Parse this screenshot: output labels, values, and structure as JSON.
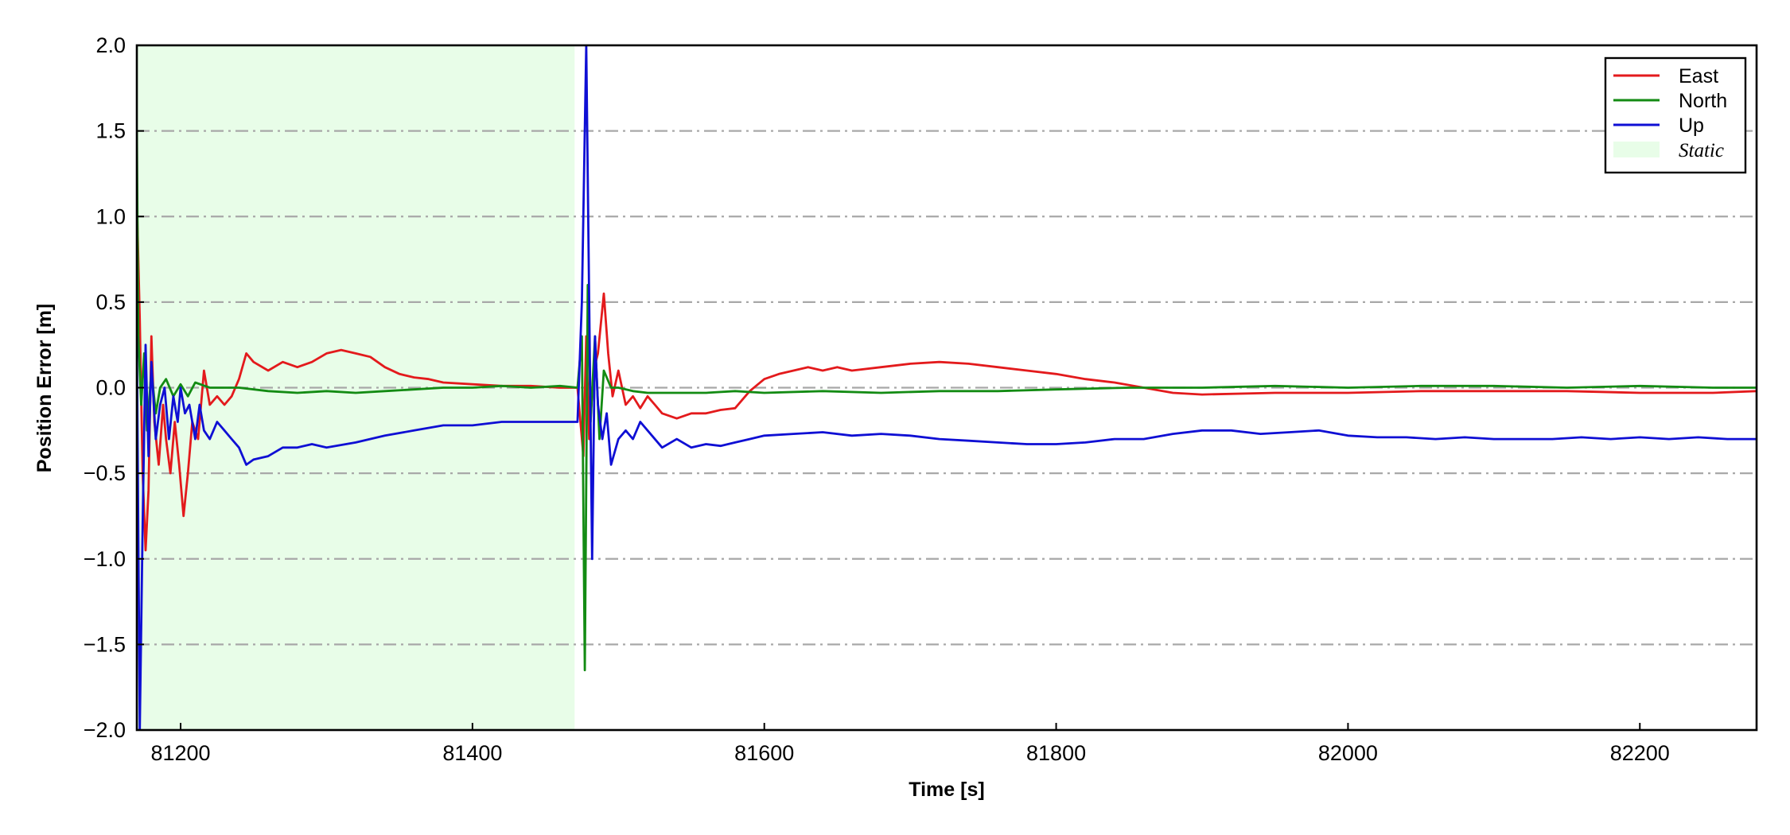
{
  "chart_data": {
    "type": "line",
    "xlabel": "Time [s]",
    "ylabel": "Position Error [m]",
    "xlim": [
      81170,
      82280
    ],
    "ylim": [
      -2.0,
      2.0
    ],
    "x_ticks": [
      81200,
      81400,
      81600,
      81800,
      82000,
      82200
    ],
    "y_ticks": [
      -2.0,
      -1.5,
      -1.0,
      -0.5,
      0.0,
      0.5,
      1.0,
      1.5,
      2.0
    ],
    "x_tick_labels": [
      "81200",
      "81400",
      "81600",
      "81800",
      "82000",
      "82200"
    ],
    "y_tick_labels": [
      "−2.0",
      "−1.5",
      "−1.0",
      "−0.5",
      "0.0",
      "0.5",
      "1.0",
      "1.5",
      "2.0"
    ],
    "grid": "horizontal dash-dot",
    "legend_position": "top-right",
    "static_region": {
      "label": "Static",
      "x_start": 81170,
      "x_end": 81470,
      "color": "#e8fde8"
    },
    "series": [
      {
        "name": "East",
        "color": "#e31a1c",
        "points": [
          [
            81170,
            1.1
          ],
          [
            81172,
            0.4
          ],
          [
            81174,
            -0.5
          ],
          [
            81176,
            -0.95
          ],
          [
            81178,
            -0.6
          ],
          [
            81180,
            0.3
          ],
          [
            81182,
            -0.2
          ],
          [
            81185,
            -0.45
          ],
          [
            81188,
            -0.1
          ],
          [
            81190,
            -0.3
          ],
          [
            81193,
            -0.5
          ],
          [
            81196,
            -0.2
          ],
          [
            81199,
            -0.45
          ],
          [
            81202,
            -0.75
          ],
          [
            81205,
            -0.5
          ],
          [
            81208,
            -0.2
          ],
          [
            81212,
            -0.3
          ],
          [
            81216,
            0.1
          ],
          [
            81220,
            -0.1
          ],
          [
            81225,
            -0.05
          ],
          [
            81230,
            -0.1
          ],
          [
            81235,
            -0.05
          ],
          [
            81240,
            0.05
          ],
          [
            81245,
            0.2
          ],
          [
            81250,
            0.15
          ],
          [
            81260,
            0.1
          ],
          [
            81270,
            0.15
          ],
          [
            81280,
            0.12
          ],
          [
            81290,
            0.15
          ],
          [
            81300,
            0.2
          ],
          [
            81310,
            0.22
          ],
          [
            81320,
            0.2
          ],
          [
            81330,
            0.18
          ],
          [
            81340,
            0.12
          ],
          [
            81350,
            0.08
          ],
          [
            81360,
            0.06
          ],
          [
            81370,
            0.05
          ],
          [
            81380,
            0.03
          ],
          [
            81400,
            0.02
          ],
          [
            81420,
            0.01
          ],
          [
            81440,
            0.01
          ],
          [
            81460,
            0.0
          ],
          [
            81472,
            0.0
          ],
          [
            81476,
            -0.4
          ],
          [
            81478,
            0.3
          ],
          [
            81480,
            -0.3
          ],
          [
            81483,
            0.1
          ],
          [
            81486,
            0.2
          ],
          [
            81490,
            0.55
          ],
          [
            81493,
            0.2
          ],
          [
            81496,
            -0.05
          ],
          [
            81500,
            0.1
          ],
          [
            81505,
            -0.1
          ],
          [
            81510,
            -0.05
          ],
          [
            81515,
            -0.12
          ],
          [
            81520,
            -0.05
          ],
          [
            81525,
            -0.1
          ],
          [
            81530,
            -0.15
          ],
          [
            81540,
            -0.18
          ],
          [
            81550,
            -0.15
          ],
          [
            81560,
            -0.15
          ],
          [
            81570,
            -0.13
          ],
          [
            81580,
            -0.12
          ],
          [
            81590,
            -0.02
          ],
          [
            81600,
            0.05
          ],
          [
            81610,
            0.08
          ],
          [
            81620,
            0.1
          ],
          [
            81630,
            0.12
          ],
          [
            81640,
            0.1
          ],
          [
            81650,
            0.12
          ],
          [
            81660,
            0.1
          ],
          [
            81680,
            0.12
          ],
          [
            81700,
            0.14
          ],
          [
            81720,
            0.15
          ],
          [
            81740,
            0.14
          ],
          [
            81760,
            0.12
          ],
          [
            81780,
            0.1
          ],
          [
            81800,
            0.08
          ],
          [
            81820,
            0.05
          ],
          [
            81840,
            0.03
          ],
          [
            81860,
            0.0
          ],
          [
            81880,
            -0.03
          ],
          [
            81900,
            -0.04
          ],
          [
            81950,
            -0.03
          ],
          [
            82000,
            -0.03
          ],
          [
            82050,
            -0.02
          ],
          [
            82100,
            -0.02
          ],
          [
            82150,
            -0.02
          ],
          [
            82200,
            -0.03
          ],
          [
            82250,
            -0.03
          ],
          [
            82280,
            -0.02
          ]
        ]
      },
      {
        "name": "North",
        "color": "#138b13",
        "points": [
          [
            81170,
            1.5
          ],
          [
            81171,
            0.3
          ],
          [
            81173,
            -0.1
          ],
          [
            81175,
            0.2
          ],
          [
            81177,
            -0.25
          ],
          [
            81180,
            0.1
          ],
          [
            81183,
            -0.15
          ],
          [
            81186,
            0.0
          ],
          [
            81190,
            0.05
          ],
          [
            81195,
            -0.05
          ],
          [
            81200,
            0.02
          ],
          [
            81205,
            -0.05
          ],
          [
            81210,
            0.03
          ],
          [
            81220,
            0.0
          ],
          [
            81240,
            0.0
          ],
          [
            81260,
            -0.02
          ],
          [
            81280,
            -0.03
          ],
          [
            81300,
            -0.02
          ],
          [
            81320,
            -0.03
          ],
          [
            81340,
            -0.02
          ],
          [
            81360,
            -0.01
          ],
          [
            81380,
            0.0
          ],
          [
            81400,
            0.0
          ],
          [
            81420,
            0.01
          ],
          [
            81440,
            0.0
          ],
          [
            81460,
            0.01
          ],
          [
            81472,
            0.0
          ],
          [
            81475,
            0.3
          ],
          [
            81477,
            -1.65
          ],
          [
            81479,
            0.6
          ],
          [
            81481,
            -0.2
          ],
          [
            81484,
            0.3
          ],
          [
            81487,
            -0.3
          ],
          [
            81490,
            0.1
          ],
          [
            81495,
            0.0
          ],
          [
            81500,
            0.0
          ],
          [
            81510,
            -0.02
          ],
          [
            81520,
            -0.03
          ],
          [
            81540,
            -0.03
          ],
          [
            81560,
            -0.03
          ],
          [
            81580,
            -0.02
          ],
          [
            81600,
            -0.03
          ],
          [
            81640,
            -0.02
          ],
          [
            81680,
            -0.03
          ],
          [
            81720,
            -0.02
          ],
          [
            81760,
            -0.02
          ],
          [
            81800,
            -0.01
          ],
          [
            81850,
            0.0
          ],
          [
            81900,
            0.0
          ],
          [
            81950,
            0.01
          ],
          [
            82000,
            0.0
          ],
          [
            82050,
            0.01
          ],
          [
            82100,
            0.01
          ],
          [
            82150,
            0.0
          ],
          [
            82200,
            0.01
          ],
          [
            82250,
            0.0
          ],
          [
            82280,
            0.0
          ]
        ]
      },
      {
        "name": "Up",
        "color": "#0f0fd4",
        "points": [
          [
            81170,
            0.3
          ],
          [
            81172,
            -2.0
          ],
          [
            81174,
            -0.8
          ],
          [
            81176,
            0.25
          ],
          [
            81178,
            -0.4
          ],
          [
            81180,
            0.15
          ],
          [
            81183,
            -0.3
          ],
          [
            81186,
            -0.1
          ],
          [
            81189,
            0.0
          ],
          [
            81192,
            -0.3
          ],
          [
            81195,
            -0.05
          ],
          [
            81198,
            -0.2
          ],
          [
            81200,
            0.0
          ],
          [
            81203,
            -0.15
          ],
          [
            81206,
            -0.1
          ],
          [
            81210,
            -0.3
          ],
          [
            81213,
            -0.1
          ],
          [
            81216,
            -0.25
          ],
          [
            81220,
            -0.3
          ],
          [
            81225,
            -0.2
          ],
          [
            81230,
            -0.25
          ],
          [
            81235,
            -0.3
          ],
          [
            81240,
            -0.35
          ],
          [
            81245,
            -0.45
          ],
          [
            81250,
            -0.42
          ],
          [
            81260,
            -0.4
          ],
          [
            81270,
            -0.35
          ],
          [
            81280,
            -0.35
          ],
          [
            81290,
            -0.33
          ],
          [
            81300,
            -0.35
          ],
          [
            81320,
            -0.32
          ],
          [
            81340,
            -0.28
          ],
          [
            81360,
            -0.25
          ],
          [
            81380,
            -0.22
          ],
          [
            81400,
            -0.22
          ],
          [
            81420,
            -0.2
          ],
          [
            81440,
            -0.2
          ],
          [
            81460,
            -0.2
          ],
          [
            81472,
            -0.2
          ],
          [
            81475,
            0.5
          ],
          [
            81478,
            2.0
          ],
          [
            81480,
            0.5
          ],
          [
            81482,
            -1.0
          ],
          [
            81484,
            0.3
          ],
          [
            81486,
            -0.1
          ],
          [
            81489,
            -0.3
          ],
          [
            81492,
            -0.15
          ],
          [
            81495,
            -0.45
          ],
          [
            81500,
            -0.3
          ],
          [
            81505,
            -0.25
          ],
          [
            81510,
            -0.3
          ],
          [
            81515,
            -0.2
          ],
          [
            81520,
            -0.25
          ],
          [
            81530,
            -0.35
          ],
          [
            81540,
            -0.3
          ],
          [
            81550,
            -0.35
          ],
          [
            81560,
            -0.33
          ],
          [
            81570,
            -0.34
          ],
          [
            81580,
            -0.32
          ],
          [
            81590,
            -0.3
          ],
          [
            81600,
            -0.28
          ],
          [
            81620,
            -0.27
          ],
          [
            81640,
            -0.26
          ],
          [
            81660,
            -0.28
          ],
          [
            81680,
            -0.27
          ],
          [
            81700,
            -0.28
          ],
          [
            81720,
            -0.3
          ],
          [
            81740,
            -0.31
          ],
          [
            81760,
            -0.32
          ],
          [
            81780,
            -0.33
          ],
          [
            81800,
            -0.33
          ],
          [
            81820,
            -0.32
          ],
          [
            81840,
            -0.3
          ],
          [
            81860,
            -0.3
          ],
          [
            81880,
            -0.27
          ],
          [
            81900,
            -0.25
          ],
          [
            81920,
            -0.25
          ],
          [
            81940,
            -0.27
          ],
          [
            81960,
            -0.26
          ],
          [
            81980,
            -0.25
          ],
          [
            82000,
            -0.28
          ],
          [
            82020,
            -0.29
          ],
          [
            82040,
            -0.29
          ],
          [
            82060,
            -0.3
          ],
          [
            82080,
            -0.29
          ],
          [
            82100,
            -0.3
          ],
          [
            82120,
            -0.3
          ],
          [
            82140,
            -0.3
          ],
          [
            82160,
            -0.29
          ],
          [
            82180,
            -0.3
          ],
          [
            82200,
            -0.29
          ],
          [
            82220,
            -0.3
          ],
          [
            82240,
            -0.29
          ],
          [
            82260,
            -0.3
          ],
          [
            82280,
            -0.3
          ]
        ]
      }
    ]
  }
}
